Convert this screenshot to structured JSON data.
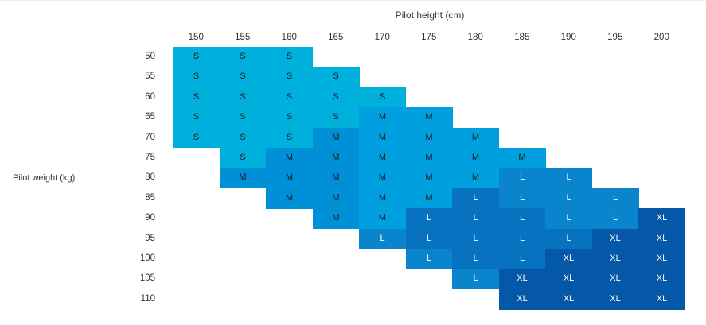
{
  "chart_data": {
    "type": "heatmap",
    "xlabel": "Pilot height (cm)",
    "ylabel": "Pilot weight (kg)",
    "x": [
      150,
      155,
      160,
      165,
      170,
      175,
      180,
      185,
      190,
      195,
      200
    ],
    "y": [
      50,
      55,
      60,
      65,
      70,
      75,
      80,
      85,
      90,
      95,
      100,
      105,
      110
    ],
    "cells": [
      [
        "S",
        "S",
        "S",
        "",
        "",
        "",
        "",
        "",
        "",
        "",
        ""
      ],
      [
        "S",
        "S",
        "S",
        "S",
        "",
        "",
        "",
        "",
        "",
        "",
        ""
      ],
      [
        "S",
        "S",
        "S",
        "S",
        "S",
        "",
        "",
        "",
        "",
        "",
        ""
      ],
      [
        "S",
        "S",
        "S",
        "S",
        "M",
        "M",
        "",
        "",
        "",
        "",
        ""
      ],
      [
        "S",
        "S",
        "S",
        "M",
        "M",
        "M",
        "M",
        "",
        "",
        "",
        ""
      ],
      [
        "",
        "S",
        "M",
        "M",
        "M",
        "M",
        "M",
        "M",
        "",
        "",
        ""
      ],
      [
        "",
        "M",
        "M",
        "M",
        "M",
        "M",
        "M",
        "L",
        "L",
        "",
        ""
      ],
      [
        "",
        "",
        "M",
        "M",
        "M",
        "M",
        "L",
        "L",
        "L",
        "L",
        ""
      ],
      [
        "",
        "",
        "",
        "M",
        "M",
        "L",
        "L",
        "L",
        "L",
        "L",
        "XL"
      ],
      [
        "",
        "",
        "",
        "",
        "L",
        "L",
        "L",
        "L",
        "L",
        "XL",
        "XL"
      ],
      [
        "",
        "",
        "",
        "",
        "",
        "L",
        "L",
        "L",
        "XL",
        "XL",
        "XL"
      ],
      [
        "",
        "",
        "",
        "",
        "",
        "",
        "L",
        "XL",
        "XL",
        "XL",
        "XL"
      ],
      [
        "",
        "",
        "",
        "",
        "",
        "",
        "",
        "XL",
        "XL",
        "XL",
        "XL"
      ]
    ],
    "colors": {
      "S_light": "#00b0dc",
      "M_light": "#00a0e0",
      "S_dark": "#0ba8da",
      "M_dark": "#0090d8",
      "L_light": "#0a84cc",
      "L_dark": "#0772c0",
      "XL": "#0558a8"
    },
    "grid": false,
    "legend": "none"
  }
}
